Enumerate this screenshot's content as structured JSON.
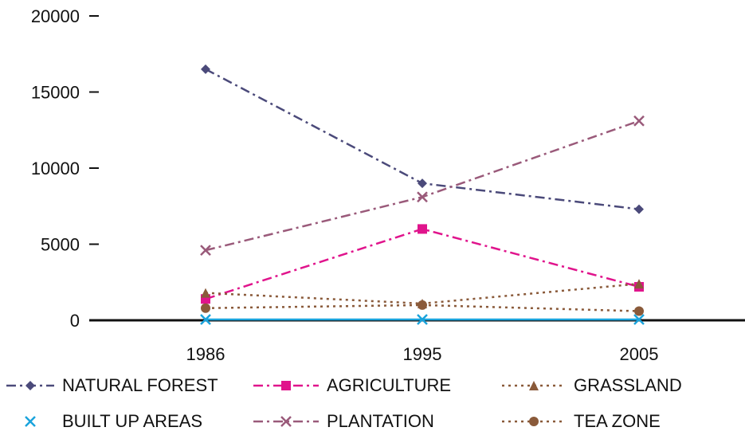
{
  "chart_data": {
    "type": "line",
    "title": "",
    "xlabel": "",
    "ylabel": "",
    "x": [
      "1986",
      "1995",
      "2005"
    ],
    "ylim": [
      0,
      20000
    ],
    "yticks": [
      "20000",
      "15000",
      "10000",
      "5000",
      "0"
    ],
    "grid": false,
    "legend_position": "bottom",
    "series": [
      {
        "name": "NATURAL FOREST",
        "values": [
          16500,
          9000,
          7300
        ],
        "color": "#4b4a7a",
        "marker": "diamond",
        "dash": "dashdot"
      },
      {
        "name": "AGRICULTURE",
        "values": [
          1400,
          6000,
          2200
        ],
        "color": "#e0148c",
        "marker": "square",
        "dash": "dashdot"
      },
      {
        "name": "GRASSLAND",
        "values": [
          1800,
          1100,
          2400
        ],
        "color": "#8a5a3a",
        "marker": "triangle",
        "dash": "dotted"
      },
      {
        "name": "BUILT UP AREAS",
        "values": [
          50,
          50,
          50
        ],
        "color": "#1aa3dc",
        "marker": "x",
        "dash": "solid"
      },
      {
        "name": "PLANTATION",
        "values": [
          4600,
          8100,
          13100
        ],
        "color": "#9a5a7a",
        "marker": "x",
        "dash": "dashdot"
      },
      {
        "name": "TEA ZONE",
        "values": [
          800,
          1000,
          600
        ],
        "color": "#8a5a3a",
        "marker": "circle",
        "dash": "dotted"
      }
    ]
  }
}
